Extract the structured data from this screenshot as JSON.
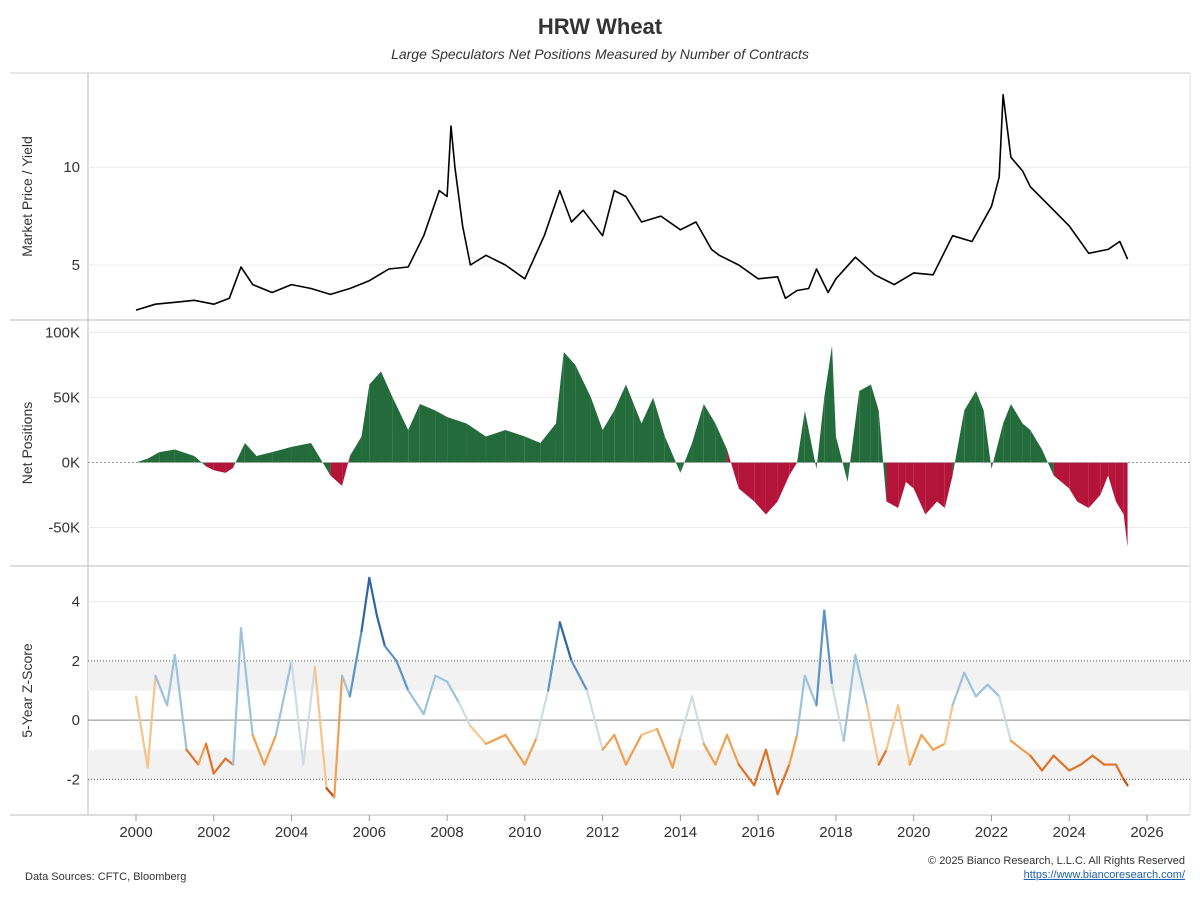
{
  "title": "HRW Wheat",
  "subtitle": "Large Speculators Net Positions Measured by Number of Contracts",
  "footer": {
    "source": "Data Sources: CFTC, Bloomberg",
    "copyright": "© 2025 Bianco Research, L.L.C. All Rights Reserved",
    "link": "https://www.biancoresearch.com/"
  },
  "chart_data": [
    {
      "type": "line",
      "ylabel": "Market Price / Yield",
      "yticks": [
        "5",
        "10"
      ],
      "ytick_values": [
        5,
        10
      ],
      "ylim": [
        2.5,
        14.5
      ],
      "xlim": [
        2000,
        2026
      ],
      "color": "#000000",
      "series": [
        {
          "x": [
            2000.0,
            2000.5,
            2001.0,
            2001.5,
            2002.0,
            2002.4,
            2002.7,
            2003.0,
            2003.5,
            2004.0,
            2004.5,
            2005.0,
            2005.5,
            2006.0,
            2006.5,
            2007.0,
            2007.4,
            2007.8,
            2008.0,
            2008.1,
            2008.2,
            2008.4,
            2008.6,
            2009.0,
            2009.5,
            2010.0,
            2010.5,
            2010.9,
            2011.2,
            2011.5,
            2012.0,
            2012.3,
            2012.6,
            2013.0,
            2013.5,
            2014.0,
            2014.4,
            2014.8,
            2015.0,
            2015.5,
            2016.0,
            2016.5,
            2016.7,
            2017.0,
            2017.3,
            2017.5,
            2017.8,
            2018.0,
            2018.5,
            2019.0,
            2019.5,
            2020.0,
            2020.5,
            2021.0,
            2021.5,
            2022.0,
            2022.2,
            2022.3,
            2022.5,
            2022.8,
            2023.0,
            2023.5,
            2024.0,
            2024.5,
            2025.0,
            2025.3,
            2025.5
          ],
          "y": [
            2.7,
            3.0,
            3.1,
            3.2,
            3.0,
            3.3,
            4.9,
            4.0,
            3.6,
            4.0,
            3.8,
            3.5,
            3.8,
            4.2,
            4.8,
            4.9,
            6.5,
            8.8,
            8.5,
            12.1,
            10.0,
            7.0,
            5.0,
            5.5,
            5.0,
            4.3,
            6.5,
            8.8,
            7.2,
            7.8,
            6.5,
            8.8,
            8.5,
            7.2,
            7.5,
            6.8,
            7.2,
            5.8,
            5.5,
            5.0,
            4.3,
            4.4,
            3.3,
            3.7,
            3.8,
            4.8,
            3.6,
            4.3,
            5.4,
            4.5,
            4.0,
            4.6,
            4.5,
            6.5,
            6.2,
            8.0,
            9.5,
            13.7,
            10.5,
            9.8,
            9.0,
            8.0,
            7.0,
            5.6,
            5.8,
            6.2,
            5.3
          ]
        }
      ]
    },
    {
      "type": "area",
      "ylabel": "Net Positions",
      "yticks": [
        "-50K",
        "0K",
        "50K",
        "100K"
      ],
      "ytick_values": [
        -50000,
        0,
        50000,
        100000
      ],
      "ylim": [
        -75000,
        105000
      ],
      "xlim": [
        2000,
        2026
      ],
      "colors": {
        "positive": "#246b3b",
        "negative": "#b5143a"
      },
      "series": [
        {
          "x": [
            2000.0,
            2000.3,
            2000.6,
            2001.0,
            2001.5,
            2001.8,
            2002.0,
            2002.3,
            2002.5,
            2002.8,
            2003.1,
            2003.5,
            2004.0,
            2004.5,
            2005.0,
            2005.3,
            2005.5,
            2005.8,
            2006.0,
            2006.3,
            2006.6,
            2007.0,
            2007.3,
            2007.7,
            2008.0,
            2008.5,
            2009.0,
            2009.5,
            2010.0,
            2010.4,
            2010.8,
            2011.0,
            2011.3,
            2011.7,
            2012.0,
            2012.3,
            2012.6,
            2012.8,
            2013.0,
            2013.3,
            2013.6,
            2014.0,
            2014.3,
            2014.6,
            2014.9,
            2015.2,
            2015.5,
            2015.9,
            2016.2,
            2016.5,
            2016.8,
            2017.0,
            2017.2,
            2017.5,
            2017.7,
            2017.9,
            2018.0,
            2018.3,
            2018.6,
            2018.9,
            2019.1,
            2019.3,
            2019.6,
            2019.8,
            2020.0,
            2020.3,
            2020.6,
            2020.8,
            2021.0,
            2021.3,
            2021.6,
            2021.8,
            2022.0,
            2022.3,
            2022.5,
            2022.8,
            2023.0,
            2023.3,
            2023.6,
            2024.0,
            2024.2,
            2024.5,
            2024.8,
            2025.0,
            2025.2,
            2025.4,
            2025.5
          ],
          "y": [
            0,
            3000,
            8000,
            10000,
            5000,
            -3000,
            -6000,
            -8000,
            -4000,
            15000,
            5000,
            8000,
            12000,
            15000,
            -10000,
            -18000,
            5000,
            20000,
            60000,
            70000,
            50000,
            25000,
            45000,
            40000,
            35000,
            30000,
            20000,
            25000,
            20000,
            15000,
            30000,
            85000,
            75000,
            50000,
            25000,
            40000,
            60000,
            45000,
            30000,
            50000,
            20000,
            -8000,
            15000,
            45000,
            30000,
            10000,
            -20000,
            -30000,
            -40000,
            -30000,
            -10000,
            0,
            40000,
            -5000,
            50000,
            90000,
            20000,
            -15000,
            55000,
            60000,
            40000,
            -30000,
            -35000,
            -15000,
            -20000,
            -40000,
            -30000,
            -35000,
            -10000,
            40000,
            55000,
            40000,
            -5000,
            30000,
            45000,
            30000,
            25000,
            10000,
            -10000,
            -20000,
            -30000,
            -35000,
            -25000,
            -10000,
            -30000,
            -40000,
            -65000
          ]
        }
      ]
    },
    {
      "type": "line",
      "ylabel": "5-Year Z-Score",
      "yticks": [
        "-2",
        "0",
        "2",
        "4"
      ],
      "ytick_values": [
        -2,
        0,
        2,
        4
      ],
      "ylim": [
        -3.0,
        5.0
      ],
      "xlim": [
        2000,
        2026
      ],
      "bands": [
        [
          1.0,
          2.0
        ],
        [
          -2.0,
          -1.0
        ]
      ],
      "colors": {
        "high": "#2f65a0",
        "neutral": "#e8e3d8",
        "low": "#d8531a"
      },
      "series": [
        {
          "x": [
            2000.0,
            2000.3,
            2000.5,
            2000.8,
            2001.0,
            2001.3,
            2001.6,
            2001.8,
            2002.0,
            2002.3,
            2002.5,
            2002.7,
            2003.0,
            2003.3,
            2003.6,
            2004.0,
            2004.3,
            2004.6,
            2004.9,
            2005.1,
            2005.3,
            2005.5,
            2005.8,
            2006.0,
            2006.2,
            2006.4,
            2006.7,
            2007.0,
            2007.4,
            2007.7,
            2008.0,
            2008.3,
            2008.6,
            2009.0,
            2009.5,
            2010.0,
            2010.3,
            2010.6,
            2010.9,
            2011.2,
            2011.6,
            2012.0,
            2012.3,
            2012.6,
            2013.0,
            2013.4,
            2013.8,
            2014.0,
            2014.3,
            2014.6,
            2014.9,
            2015.2,
            2015.5,
            2015.9,
            2016.2,
            2016.5,
            2016.8,
            2017.0,
            2017.2,
            2017.5,
            2017.7,
            2017.9,
            2018.2,
            2018.5,
            2018.8,
            2019.1,
            2019.3,
            2019.6,
            2019.9,
            2020.2,
            2020.5,
            2020.8,
            2021.0,
            2021.3,
            2021.6,
            2021.9,
            2022.2,
            2022.5,
            2022.8,
            2023.0,
            2023.3,
            2023.6,
            2024.0,
            2024.3,
            2024.6,
            2024.9,
            2025.2,
            2025.4,
            2025.5
          ],
          "y": [
            0.8,
            -1.6,
            1.5,
            0.5,
            2.2,
            -1.0,
            -1.5,
            -0.8,
            -1.8,
            -1.3,
            -1.5,
            3.1,
            -0.5,
            -1.5,
            -0.5,
            2.0,
            -1.5,
            1.8,
            -2.3,
            -2.6,
            1.5,
            0.8,
            3.0,
            4.8,
            3.5,
            2.5,
            2.0,
            1.0,
            0.2,
            1.5,
            1.3,
            0.6,
            -0.2,
            -0.8,
            -0.5,
            -1.5,
            -0.6,
            1.0,
            3.3,
            2.0,
            1.0,
            -1.0,
            -0.5,
            -1.5,
            -0.5,
            -0.3,
            -1.6,
            -0.6,
            0.8,
            -0.8,
            -1.5,
            -0.5,
            -1.5,
            -2.2,
            -1.0,
            -2.5,
            -1.5,
            -0.5,
            1.5,
            0.5,
            3.7,
            1.2,
            -0.7,
            2.2,
            0.5,
            -1.5,
            -1.0,
            0.5,
            -1.5,
            -0.5,
            -1.0,
            -0.8,
            0.5,
            1.6,
            0.8,
            1.2,
            0.8,
            -0.7,
            -1.0,
            -1.2,
            -1.7,
            -1.2,
            -1.7,
            -1.5,
            -1.2,
            -1.5,
            -1.5,
            -2.0,
            -2.2
          ]
        }
      ]
    }
  ],
  "xaxis": {
    "ticks": [
      "2000",
      "2002",
      "2004",
      "2006",
      "2008",
      "2010",
      "2012",
      "2014",
      "2016",
      "2018",
      "2020",
      "2022",
      "2024",
      "2026"
    ],
    "tick_values": [
      2000,
      2002,
      2004,
      2006,
      2008,
      2010,
      2012,
      2014,
      2016,
      2018,
      2020,
      2022,
      2024,
      2026
    ]
  }
}
